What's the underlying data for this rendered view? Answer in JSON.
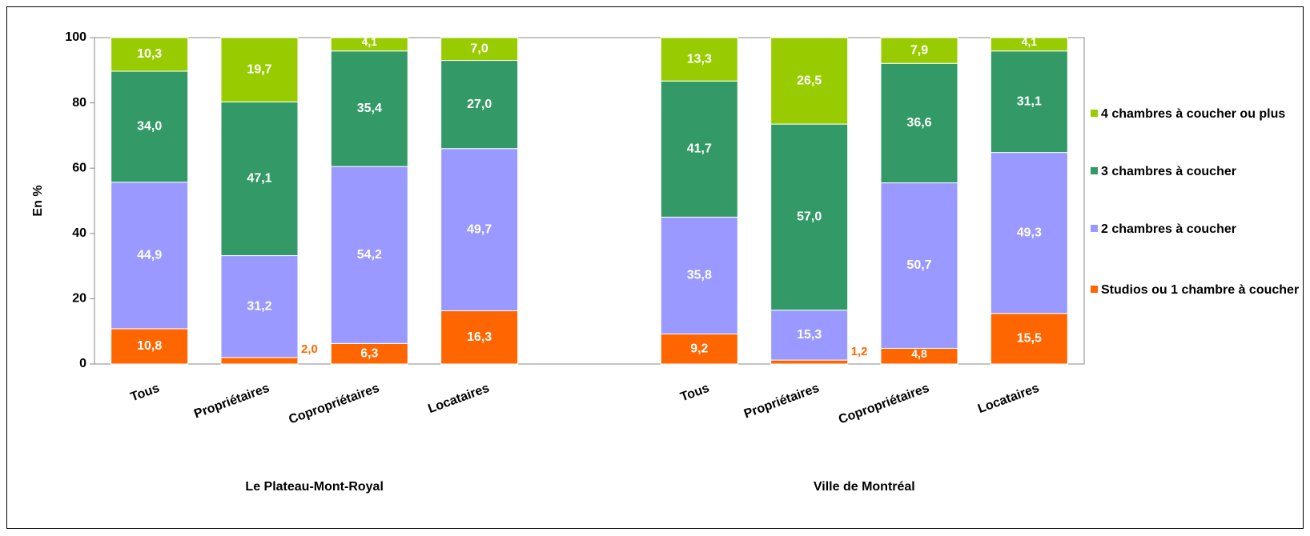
{
  "chart_data": {
    "type": "stacked_bar",
    "categories": [
      "Tous",
      "Propriétaires",
      "Copropriétaires",
      "Locataires",
      null,
      "Tous",
      "Propriétaires",
      "Copropriétaires",
      "Locataires"
    ],
    "group_labels": [
      "Le Plateau-Mont-Royal",
      "Ville de Montréal"
    ],
    "y_label": "En %",
    "ylim": [
      0,
      100
    ],
    "yticks": [
      0,
      20,
      40,
      60,
      80,
      100
    ],
    "series": [
      {
        "name": "Studios ou 1 chambre à coucher",
        "color": "#ff6600",
        "values": [
          10.8,
          2.0,
          6.3,
          16.3,
          null,
          9.2,
          1.2,
          4.8,
          15.5
        ],
        "value_labels": [
          "10,8",
          "2,0",
          "6,3",
          "16,3",
          null,
          "9,2",
          "1,2",
          "4,8",
          "15,5"
        ]
      },
      {
        "name": "2 chambres à coucher",
        "color": "#9999ff",
        "values": [
          44.9,
          31.2,
          54.2,
          49.7,
          null,
          35.8,
          15.3,
          50.7,
          49.3
        ],
        "value_labels": [
          "44,9",
          "31,2",
          "54,2",
          "49,7",
          null,
          "35,8",
          "15,3",
          "50,7",
          "49,3"
        ]
      },
      {
        "name": "3 chambres à coucher",
        "color": "#339966",
        "values": [
          34.0,
          47.1,
          35.4,
          27.0,
          null,
          41.7,
          57.0,
          36.6,
          31.1
        ],
        "value_labels": [
          "34,0",
          "47,1",
          "35,4",
          "27,0",
          null,
          "41,7",
          "57,0",
          "36,6",
          "31,1"
        ]
      },
      {
        "name": "4 chambres à coucher ou plus",
        "color": "#99cc00",
        "values": [
          10.3,
          19.7,
          4.1,
          7.0,
          null,
          13.3,
          26.5,
          7.9,
          4.1
        ],
        "value_labels": [
          "10,3",
          "19,7",
          "4,1",
          "7,0",
          null,
          "13,3",
          "26,5",
          "7,9",
          "4,1"
        ]
      }
    ]
  }
}
